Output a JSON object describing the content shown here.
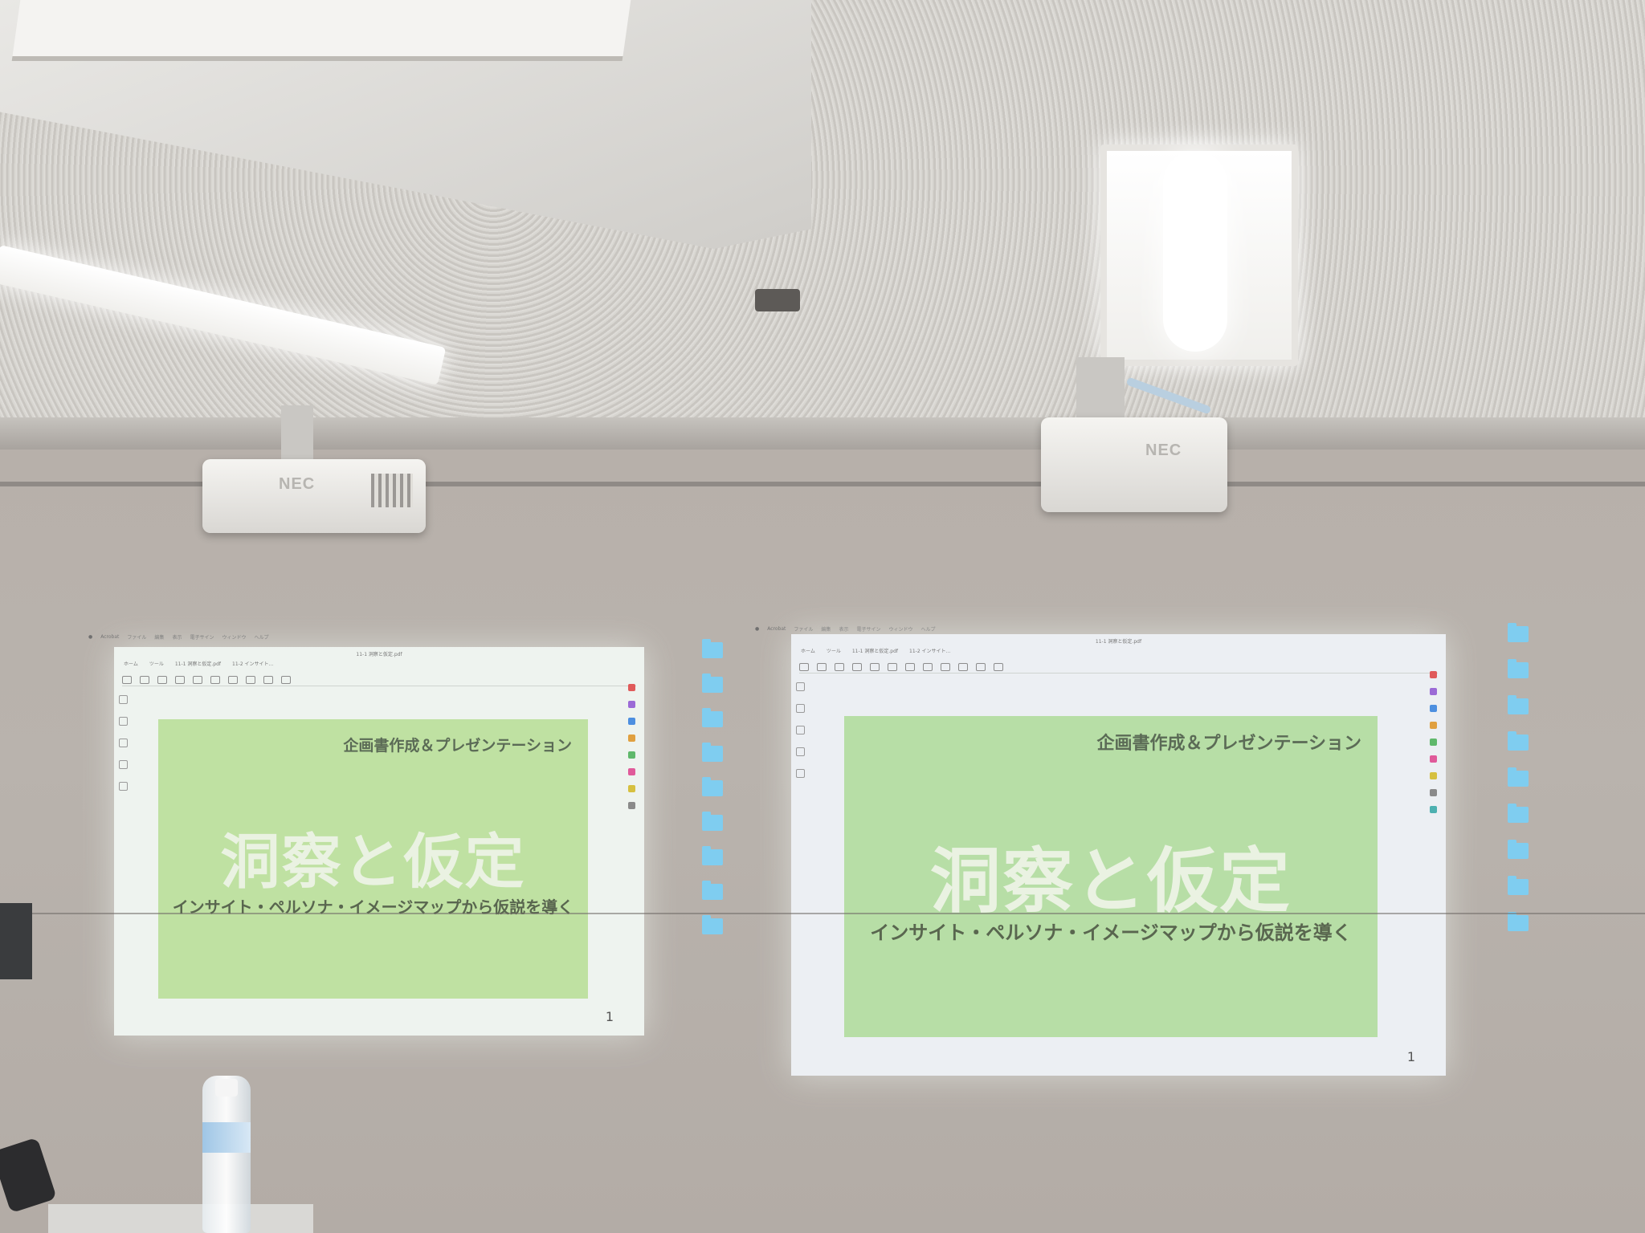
{
  "scene": "lecture room with two ceiling projectors showing the same slide",
  "projectors": {
    "left_brand": "NEC",
    "right_brand": "NEC"
  },
  "slide": {
    "course": "企画書作成＆プレゼンテーション",
    "title": "洞察と仮定",
    "subtitle": "インサイト・ペルソナ・イメージマップから仮説を導く",
    "page_number": "1"
  },
  "viewer": {
    "doc_title": "11-1 洞察と仮定.pdf",
    "tabs": [
      "ホーム",
      "ツール",
      "11-1 洞察と仮定.pdf",
      "11-2 インサイト..."
    ],
    "menu": [
      "Acrobat",
      "ファイル",
      "編集",
      "表示",
      "電子サイン",
      "ウィンドウ",
      "ヘルプ"
    ]
  },
  "desktop_folders_left": [
    "",
    "",
    "",
    "",
    "",
    "",
    "",
    "",
    ""
  ],
  "desktop_folders_right": [
    "",
    "",
    "",
    "",
    "",
    "",
    "",
    "",
    ""
  ],
  "colors": {
    "slide_green": "#bfe1a2",
    "slide_text_dark": "#5b6b56",
    "title_text": "#eaf2e2",
    "folder_blue": "#7fcdf0"
  }
}
